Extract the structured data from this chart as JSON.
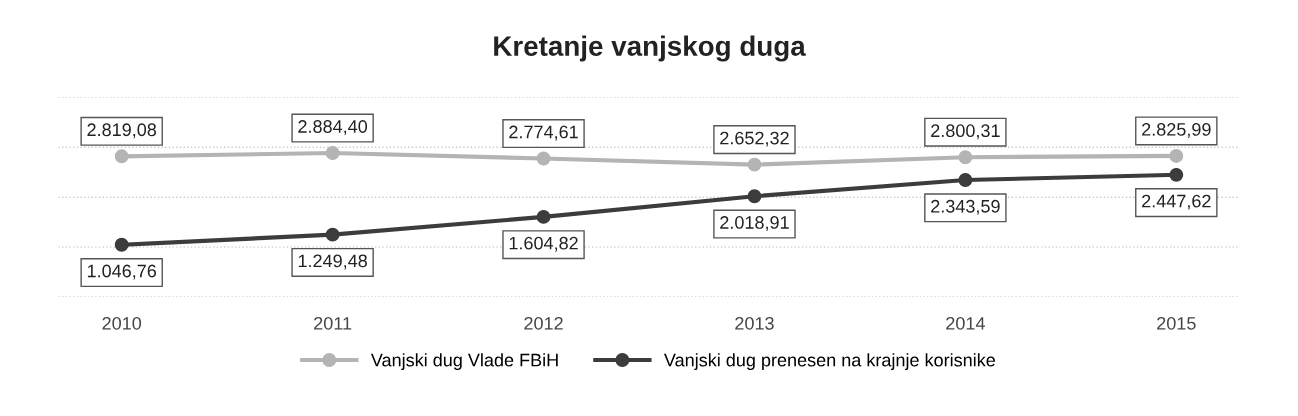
{
  "chart_data": {
    "type": "line",
    "title": "Kretanje vanjskog duga",
    "categories": [
      "2010",
      "2011",
      "2012",
      "2013",
      "2014",
      "2015"
    ],
    "series": [
      {
        "name": "Vanjski dug Vlade FBiH",
        "color": "#b4b4b4",
        "values": [
          2819.08,
          2884.4,
          2774.61,
          2652.32,
          2800.31,
          2825.99
        ],
        "value_labels": [
          "2.819,08",
          "2.884,40",
          "2.774,61",
          "2.652,32",
          "2.800,31",
          "2.825,99"
        ]
      },
      {
        "name": "Vanjski dug prenesen na krajnje korisnike",
        "color": "#3c3c3c",
        "values": [
          1046.76,
          1249.48,
          1604.82,
          2018.91,
          2343.59,
          2447.62
        ],
        "value_labels": [
          "1.046,76",
          "1.249,48",
          "1.604,82",
          "2.018,91",
          "2.343,59",
          "2.447,62"
        ]
      }
    ],
    "ylim": [
      0,
      4000
    ],
    "yticks": [
      {
        "value": 0,
        "label": null
      },
      {
        "value": 1000,
        "label": null
      },
      {
        "value": 2000,
        "label": null
      },
      {
        "value": 3000,
        "label": null
      },
      {
        "value": 4000,
        "label": null
      }
    ],
    "grid": "y",
    "legend": "bottom",
    "marker": "circle",
    "line_style": "solid",
    "tick_labels": "x"
  }
}
